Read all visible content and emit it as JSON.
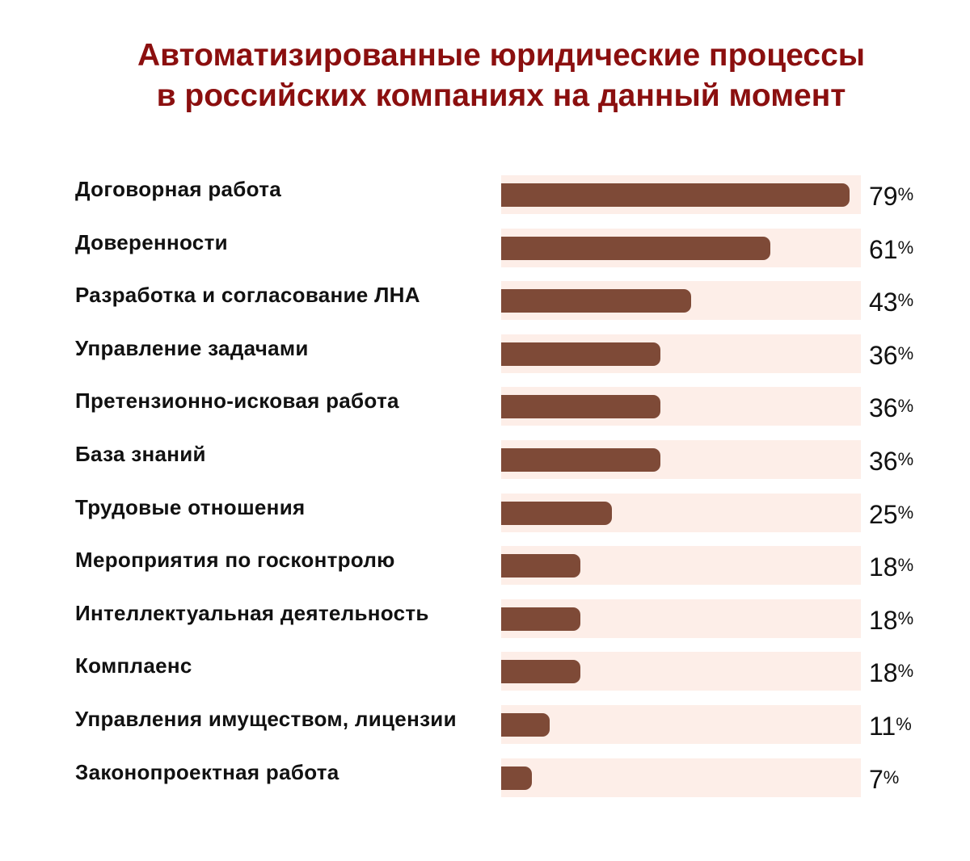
{
  "chart_data": {
    "type": "bar",
    "orientation": "horizontal",
    "title": [
      "Автоматизированные юридические процессы",
      "в российских компаниях на данный момент"
    ],
    "categories": [
      "Договорная работа",
      "Доверенности",
      "Разработка и согласование ЛНА",
      "Управление задачами",
      "Претензионно-исковая работа",
      "База знаний",
      "Трудовые отношения",
      "Мероприятия по госконтролю",
      "Интеллектуальная деятельность",
      "Комплаенс",
      "Управления имуществом, лицензии",
      "Законопроектная работа"
    ],
    "values": [
      79,
      61,
      43,
      36,
      36,
      36,
      25,
      18,
      18,
      18,
      11,
      7
    ],
    "value_suffix": "%",
    "xlim": [
      0,
      82
    ],
    "grid": false,
    "colors": {
      "title": "#8b0f0f",
      "bar": "#7e4a37",
      "track": "#fdeee8"
    }
  }
}
